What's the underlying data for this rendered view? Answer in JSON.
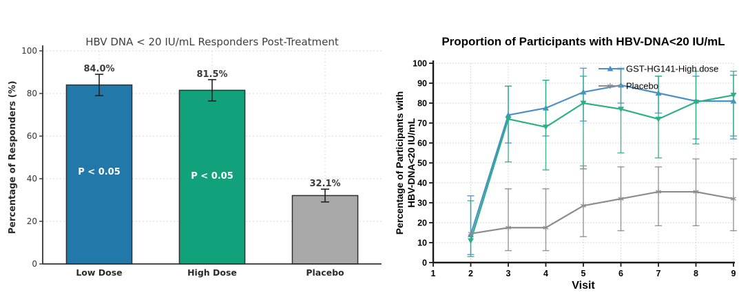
{
  "figure": {
    "background": "#ffffff"
  },
  "chart_data": [
    {
      "type": "bar",
      "title": "HBV DNA < 20 IU/mL Responders Post-Treatment",
      "ylabel": "Percentage of Responders (%)",
      "categories": [
        "Low Dose",
        "High Dose",
        "Placebo"
      ],
      "values": [
        84.0,
        81.5,
        32.1
      ],
      "value_labels": [
        "84.0%",
        "81.5%",
        "32.1%"
      ],
      "errors": [
        5,
        5,
        3
      ],
      "bar_annotations": [
        {
          "text": "P < 0.05",
          "y": 42
        },
        {
          "text": "P < 0.05",
          "y": 40
        },
        null
      ],
      "bar_colors": [
        "#2278a8",
        "#11a17b",
        "#a9a9a9"
      ],
      "bar_edge_color": "#2f2f2f",
      "ylim": [
        0,
        100
      ],
      "yticks": [
        0,
        20,
        40,
        60,
        80,
        100
      ],
      "grid": true,
      "legend": null
    },
    {
      "type": "line",
      "title": "Proportion of Participants with HBV-DNA<20 IU/mL",
      "xlabel": "Visit",
      "ylabel_lines": [
        "Percentage of Participants with",
        "HBV-DNA<20 IU/mL"
      ],
      "xlim": [
        1,
        9
      ],
      "ylim": [
        0,
        100
      ],
      "xticks": [
        1,
        2,
        3,
        4,
        5,
        6,
        7,
        8,
        9
      ],
      "yticks": [
        0,
        10,
        20,
        30,
        40,
        50,
        60,
        70,
        80,
        90,
        100
      ],
      "grid": true,
      "legend_position": "top-right",
      "series": [
        {
          "id": "gst-hg141-high-dose",
          "legend_label": "GST-HG141-High dose",
          "color": "#4a8fc7",
          "marker": "triangle-up",
          "x": [
            2,
            3,
            4,
            5,
            6,
            7,
            8,
            9
          ],
          "y": [
            14,
            74,
            77.5,
            85.5,
            89,
            85,
            81,
            81
          ],
          "err_low": [
            4,
            60,
            63.5,
            71,
            80,
            75,
            62,
            62
          ],
          "err_high": [
            33.5,
            88.5,
            91.5,
            97.5,
            97.5,
            93.5,
            93.5,
            94
          ]
        },
        {
          "id": "green-series-unlabeled",
          "legend_label": null,
          "color": "#2bb086",
          "marker": "triangle-down",
          "x": [
            2,
            3,
            4,
            5,
            6,
            7,
            8,
            9
          ],
          "y": [
            11,
            72,
            68,
            80,
            77,
            72,
            80.5,
            84
          ],
          "err_low": [
            3,
            50.5,
            46.5,
            47,
            55,
            52.5,
            59.5,
            63.5
          ],
          "err_high": [
            31,
            88.5,
            91.5,
            93.5,
            97,
            93.5,
            96,
            96
          ]
        },
        {
          "id": "placebo",
          "legend_label": "Placebo",
          "color": "#8c8c8c",
          "marker": "star",
          "x": [
            2,
            3,
            4,
            5,
            6,
            7,
            8,
            9
          ],
          "y": [
            14.5,
            17.5,
            17.5,
            28.5,
            32,
            35.5,
            35.5,
            32
          ],
          "err_low": [
            null,
            6,
            6,
            13,
            16,
            18.5,
            18.5,
            16
          ],
          "err_high": [
            null,
            37,
            37,
            48.5,
            48,
            48,
            52,
            52
          ]
        }
      ]
    }
  ]
}
